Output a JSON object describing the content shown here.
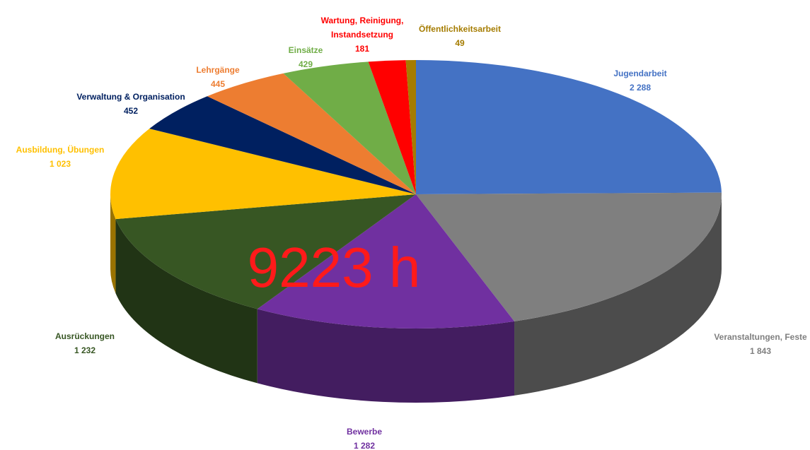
{
  "chart_data": {
    "type": "pie",
    "three_d": true,
    "annotation": "9223 h",
    "categories": [
      "Jugendarbeit",
      "Veranstaltungen, Feste",
      "Bewerbe",
      "Ausrückungen",
      "Ausbildung, Übungen",
      "Verwaltung & Organisation",
      "Lehrgänge",
      "Einsätze",
      "Wartung, Reinigung,\nInstandsetzung",
      "Öffentlichkeitsarbeit"
    ],
    "values": [
      2288,
      1843,
      1282,
      1232,
      1023,
      452,
      445,
      429,
      181,
      49
    ],
    "value_labels": [
      "2 288",
      "1 843",
      "1 282",
      "1 232",
      "1 023",
      "452",
      "445",
      "429",
      "181",
      "49"
    ],
    "colors": [
      "#4472c4",
      "#7f7f7f",
      "#7030a0",
      "#375623",
      "#ffc000",
      "#002060",
      "#ed7d31",
      "#70ad47",
      "#ff0000",
      "#a57c00"
    ]
  }
}
